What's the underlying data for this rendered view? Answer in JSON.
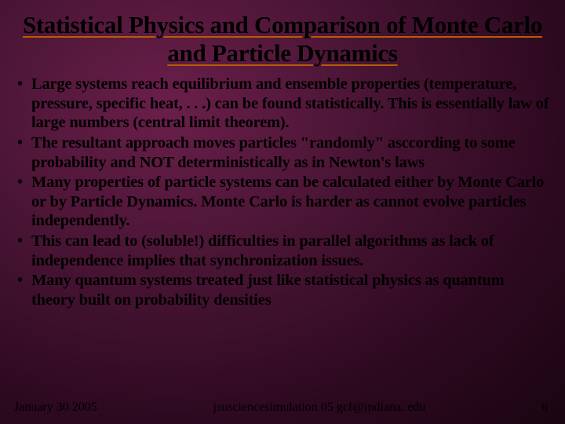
{
  "slide": {
    "title": "Statistical Physics and Comparison of Monte Carlo and Particle Dynamics",
    "bullets": [
      "Large systems reach equilibrium and ensemble properties (temperature, pressure, specific heat, . . .) can be found statistically. This is essentially law of large numbers (central limit theorem).",
      "The resultant approach moves particles \"randomly\" asccording to some probability and NOT deterministically as in Newton's laws",
      "Many properties of particle systems can be calculated either by Monte Carlo or by Particle Dynamics. Monte Carlo is harder as cannot evolve particles independently.",
      "This can lead to (soluble!) difficulties in parallel algorithms as lack of independence implies that synchronization issues.",
      "Many quantum systems treated just like statistical physics as quantum theory built on probability densities"
    ],
    "footer": {
      "date": "January 30 2005",
      "center": "jsusciencesimulation 05 gcf@indiana. edu",
      "page": "6"
    },
    "colors": {
      "background_inner": "#6a1f4a",
      "background_outer": "#1a0512",
      "text": "#000000",
      "underline": "#b85c00"
    },
    "typography": {
      "title_fontsize": 31,
      "bullet_fontsize": 20.5,
      "footer_fontsize": 16,
      "font_family": "Times New Roman",
      "title_weight": "bold",
      "bullet_weight": "bold"
    }
  }
}
